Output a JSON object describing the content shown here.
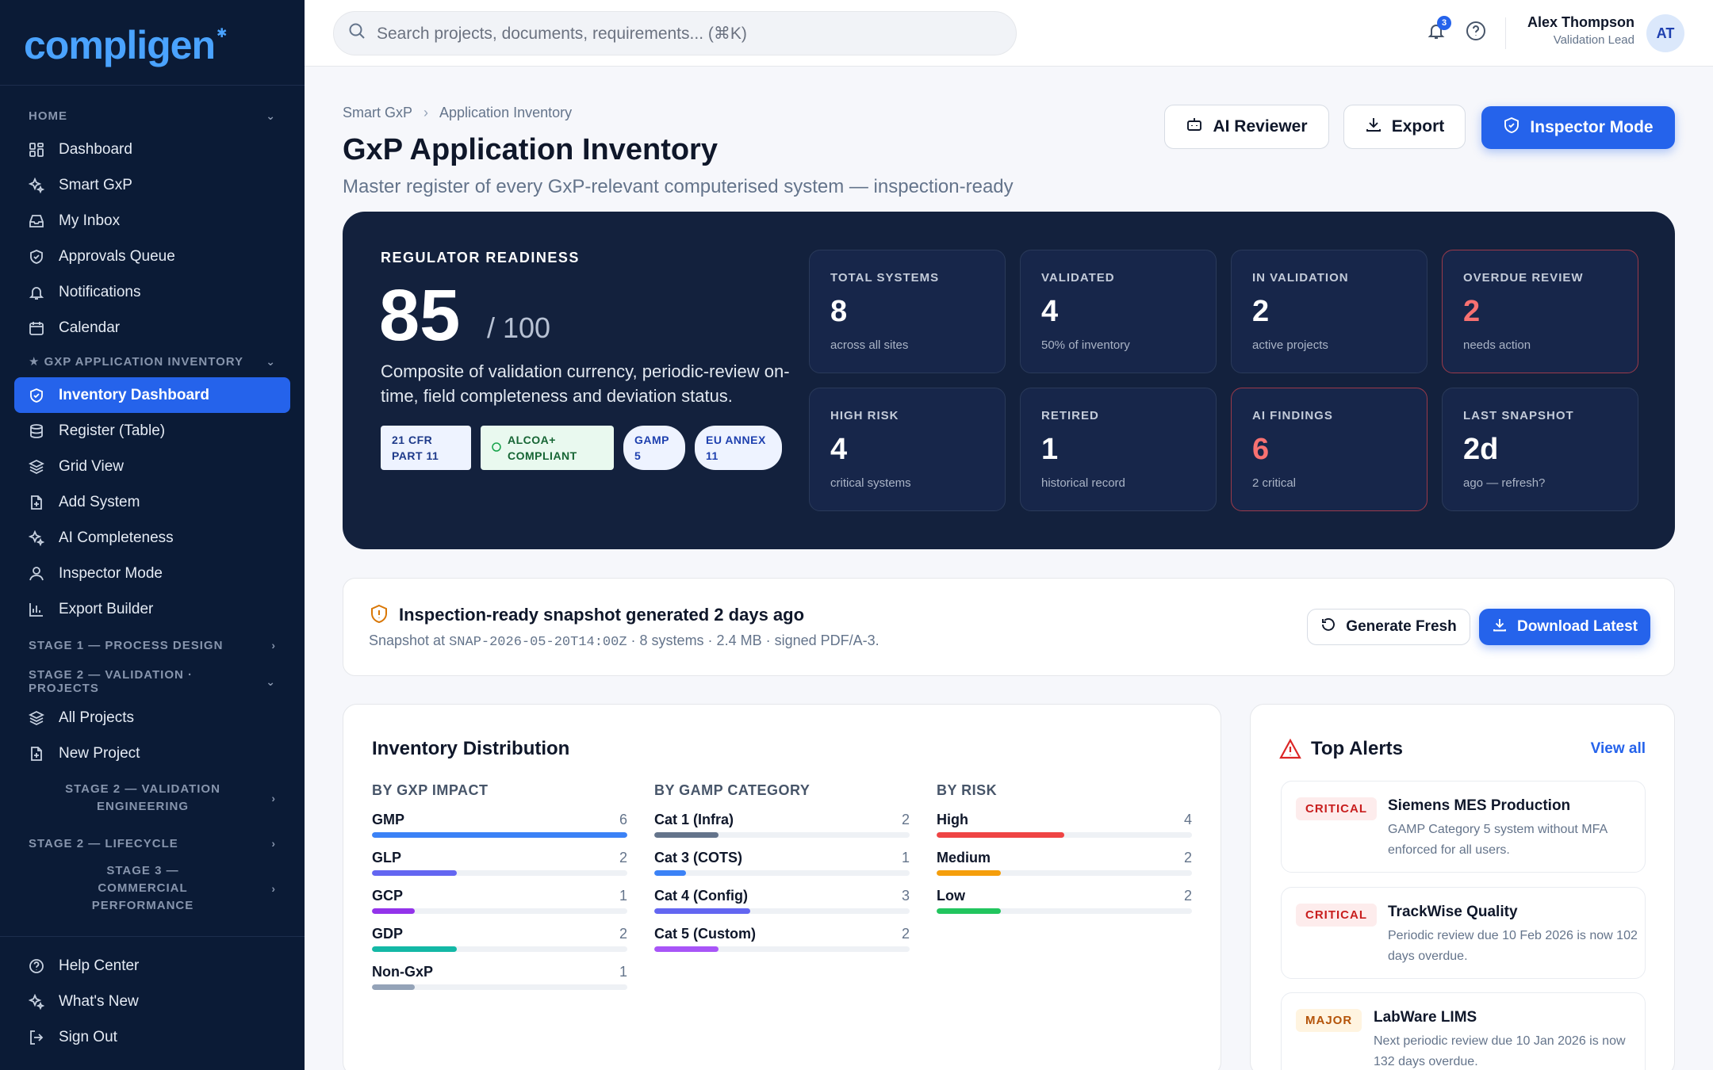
{
  "app": {
    "name": "compligen"
  },
  "sidebar": {
    "home_section": "HOME",
    "home_items": [
      "Dashboard",
      "Smart GxP",
      "My Inbox",
      "Approvals Queue",
      "Notifications",
      "Calendar"
    ],
    "inventory_section": "★ GXP APPLICATION INVENTORY",
    "inventory_items": [
      "Inventory Dashboard",
      "Register (Table)",
      "Grid View",
      "Add System",
      "AI Completeness",
      "Inspector Mode",
      "Export Builder"
    ],
    "stage1_section": "STAGE 1 — PROCESS DESIGN",
    "stage2_section": "STAGE 2 — VALIDATION · PROJECTS",
    "stage2_items": [
      "All Projects",
      "New Project"
    ],
    "stage2_eng_section": "STAGE 2 — VALIDATION ENGINEERING",
    "stage2_life_section": "STAGE 2 — LIFECYCLE",
    "stage3_section": "STAGE 3 — COMMERCIAL PERFORMANCE",
    "bottom_items": [
      "Help Center",
      "What's New",
      "Sign Out"
    ]
  },
  "topbar": {
    "search_placeholder": "Search projects, documents, requirements... (⌘K)",
    "notification_count": "3",
    "user_name": "Alex Thompson",
    "user_role": "Validation Lead",
    "avatar_initials": "AT"
  },
  "page": {
    "breadcrumb": [
      "Smart GxP",
      "Application Inventory"
    ],
    "title": "GxP Application Inventory",
    "subtitle": "Master register of every GxP-relevant computerised system — inspection-ready",
    "actions": {
      "ai_reviewer": "AI Reviewer",
      "export": "Export",
      "inspector_mode": "Inspector Mode"
    }
  },
  "readiness": {
    "label": "REGULATOR READINESS",
    "score": "85",
    "max": "/ 100",
    "description": "Composite of validation currency, periodic-review on-time, field completeness and deviation status.",
    "badges": [
      "21 CFR PART 11",
      "ALCOA+ COMPLIANT",
      "GAMP 5",
      "EU ANNEX 11"
    ],
    "stats": [
      {
        "label": "TOTAL SYSTEMS",
        "value": "8",
        "note": "across all sites"
      },
      {
        "label": "VALIDATED",
        "value": "4",
        "note": "50% of inventory"
      },
      {
        "label": "IN VALIDATION",
        "value": "2",
        "note": "active projects"
      },
      {
        "label": "OVERDUE REVIEW",
        "value": "2",
        "note": "needs action"
      },
      {
        "label": "HIGH RISK",
        "value": "4",
        "note": "critical systems"
      },
      {
        "label": "RETIRED",
        "value": "1",
        "note": "historical record"
      },
      {
        "label": "AI FINDINGS",
        "value": "6",
        "note": "2 critical"
      },
      {
        "label": "LAST SNAPSHOT",
        "value": "2d",
        "note": "ago — refresh?"
      }
    ]
  },
  "snapshot": {
    "title": "Inspection-ready snapshot generated 2 days ago",
    "meta_prefix": "Snapshot at",
    "snapshot_id": "SNAP-2026-05-20T14:00Z",
    "meta_suffix": "· 8 systems · 2.4 MB · signed PDF/A-3.",
    "generate_label": "Generate Fresh",
    "download_label": "Download Latest"
  },
  "distribution": {
    "title": "Inventory Distribution",
    "columns": [
      {
        "heading": "BY GXP IMPACT",
        "rows": [
          {
            "label": "GMP",
            "count": "6",
            "fraction": 1.0,
            "color": "#3b82f6"
          },
          {
            "label": "GLP",
            "count": "2",
            "fraction": 0.333,
            "color": "#6366f1"
          },
          {
            "label": "GCP",
            "count": "1",
            "fraction": 0.167,
            "color": "#9333ea"
          },
          {
            "label": "GDP",
            "count": "2",
            "fraction": 0.333,
            "color": "#14b8a6"
          },
          {
            "label": "Non-GxP",
            "count": "1",
            "fraction": 0.167,
            "color": "#94a3b8"
          }
        ]
      },
      {
        "heading": "BY GAMP CATEGORY",
        "rows": [
          {
            "label": "Cat 1 (Infra)",
            "count": "2",
            "fraction": 0.25,
            "color": "#64748b"
          },
          {
            "label": "Cat 3 (COTS)",
            "count": "1",
            "fraction": 0.125,
            "color": "#3b82f6"
          },
          {
            "label": "Cat 4 (Config)",
            "count": "3",
            "fraction": 0.375,
            "color": "#6366f1"
          },
          {
            "label": "Cat 5 (Custom)",
            "count": "2",
            "fraction": 0.25,
            "color": "#a855f7"
          }
        ]
      },
      {
        "heading": "BY RISK",
        "rows": [
          {
            "label": "High",
            "count": "4",
            "fraction": 0.5,
            "color": "#ef4444"
          },
          {
            "label": "Medium",
            "count": "2",
            "fraction": 0.25,
            "color": "#f59e0b"
          },
          {
            "label": "Low",
            "count": "2",
            "fraction": 0.25,
            "color": "#22c55e"
          }
        ]
      }
    ]
  },
  "alerts": {
    "title": "Top Alerts",
    "view_all": "View all",
    "items": [
      {
        "severity": "CRITICAL",
        "name": "Siemens MES Production",
        "desc": "GAMP Category 5 system without MFA enforced for all users."
      },
      {
        "severity": "CRITICAL",
        "name": "TrackWise Quality",
        "desc": "Periodic review due 10 Feb 2026 is now 102 days overdue."
      },
      {
        "severity": "MAJOR",
        "name": "LabWare LIMS",
        "desc": "Next periodic review due 10 Jan 2026 is now 132 days overdue."
      }
    ]
  }
}
